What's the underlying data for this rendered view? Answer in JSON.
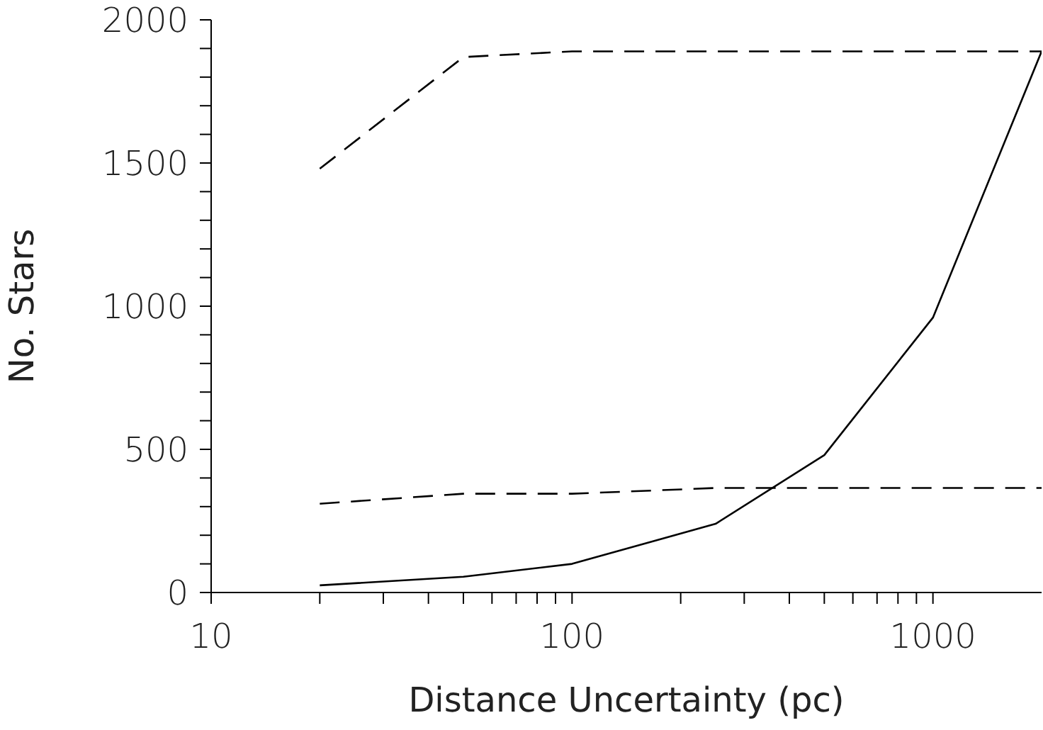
{
  "chart_data": {
    "type": "line",
    "xlabel": "Distance Uncertainty (pc)",
    "ylabel": "No. Stars",
    "x": [
      20,
      50,
      100,
      250,
      500,
      1000,
      2000
    ],
    "series": [
      {
        "color": "#000000",
        "line_style": "solid",
        "values": [
          25,
          55,
          100,
          240,
          480,
          960,
          1890
        ]
      },
      {
        "color": "#000000",
        "line_style": "dashed",
        "values": [
          310,
          345,
          345,
          365,
          365,
          365,
          365
        ]
      },
      {
        "color": "#000000",
        "line_style": "dashed",
        "values": [
          1480,
          1870,
          1890,
          1890,
          1890,
          1890,
          1890
        ]
      }
    ],
    "log": "x",
    "xlim": [
      10,
      2000
    ],
    "xticks": [
      10,
      {
        "value": 20,
        "label": null
      },
      {
        "value": 30,
        "label": null
      },
      {
        "value": 40,
        "label": null
      },
      {
        "value": 50,
        "label": null
      },
      {
        "value": 60,
        "label": null
      },
      {
        "value": 70,
        "label": null
      },
      {
        "value": 80,
        "label": null
      },
      {
        "value": 90,
        "label": null
      },
      100,
      {
        "value": 200,
        "label": null
      },
      {
        "value": 300,
        "label": null
      },
      {
        "value": 400,
        "label": null
      },
      {
        "value": 500,
        "label": null
      },
      {
        "value": 600,
        "label": null
      },
      {
        "value": 700,
        "label": null
      },
      {
        "value": 800,
        "label": null
      },
      {
        "value": 900,
        "label": null
      },
      1000
    ],
    "ylim": [
      0,
      2000
    ],
    "yticks": [
      0,
      {
        "value": 100,
        "label": null
      },
      {
        "value": 200,
        "label": null
      },
      {
        "value": 300,
        "label": null
      },
      {
        "value": 400,
        "label": null
      },
      500,
      {
        "value": 600,
        "label": null
      },
      {
        "value": 700,
        "label": null
      },
      {
        "value": 800,
        "label": null
      },
      {
        "value": 900,
        "label": null
      },
      1000,
      {
        "value": 1100,
        "label": null
      },
      {
        "value": 1200,
        "label": null
      },
      {
        "value": 1300,
        "label": null
      },
      {
        "value": 1400,
        "label": null
      },
      1500,
      {
        "value": 1600,
        "label": null
      },
      {
        "value": 1700,
        "label": null
      },
      {
        "value": 1800,
        "label": null
      },
      {
        "value": 1900,
        "label": null
      },
      2000
    ],
    "grid": false,
    "legend": false,
    "marker": "none"
  }
}
